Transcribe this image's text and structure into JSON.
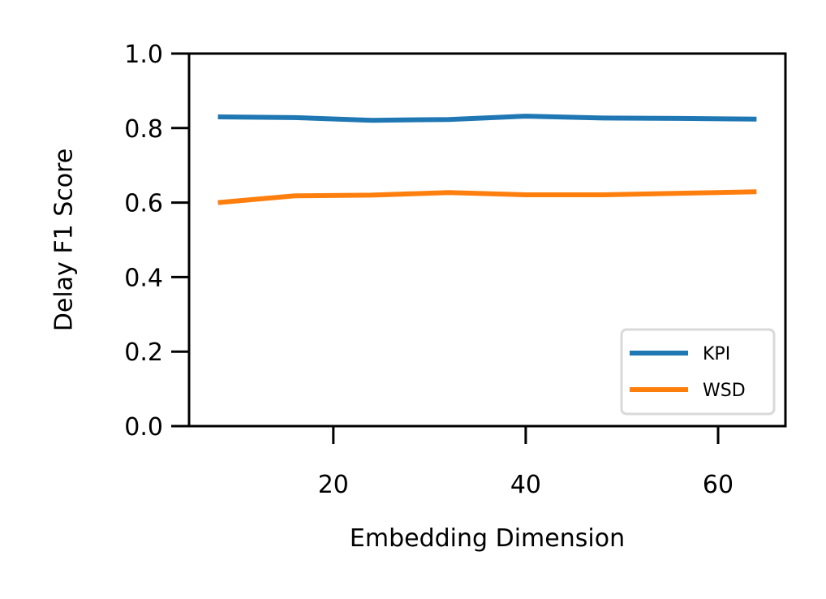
{
  "chart_data": {
    "type": "line",
    "xlabel": "Embedding Dimension",
    "ylabel": "Delay F1 Score",
    "x": [
      8,
      16,
      24,
      32,
      40,
      48,
      56,
      64
    ],
    "xlim": [
      5,
      67
    ],
    "ylim": [
      0.0,
      1.0
    ],
    "xticks": [
      20,
      40,
      60
    ],
    "xtick_labels": [
      "20",
      "40",
      "60"
    ],
    "yticks": [
      0.0,
      0.2,
      0.4,
      0.6,
      0.8,
      1.0
    ],
    "ytick_labels": [
      "0.0",
      "0.2",
      "0.4",
      "0.6",
      "0.8",
      "1.0"
    ],
    "grid": false,
    "legend_position": "lower-right",
    "series": [
      {
        "name": "KPI",
        "color": "#1f77b4",
        "values": [
          0.83,
          0.828,
          0.821,
          0.823,
          0.832,
          0.827,
          0.826,
          0.824
        ]
      },
      {
        "name": "WSD",
        "color": "#ff7f0e",
        "values": [
          0.6,
          0.618,
          0.62,
          0.627,
          0.621,
          0.621,
          0.625,
          0.629
        ]
      }
    ]
  }
}
